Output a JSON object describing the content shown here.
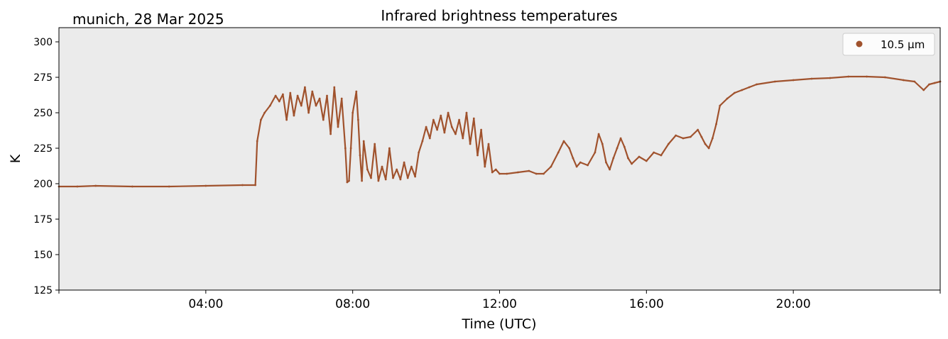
{
  "chart_data": {
    "type": "scatter",
    "title": "Infrared brightness temperatures",
    "subtitle": "munich, 28 Mar 2025",
    "xlabel": "Time (UTC)",
    "ylabel": "K",
    "xlim_hours": [
      0,
      24
    ],
    "ylim": [
      125,
      310
    ],
    "x_tick_hours": [
      4,
      8,
      12,
      16,
      20
    ],
    "x_tick_labels": [
      "04:00",
      "08:00",
      "12:00",
      "16:00",
      "20:00"
    ],
    "y_ticks": [
      125,
      150,
      175,
      200,
      225,
      250,
      275,
      300
    ],
    "y_tick_labels": [
      "125",
      "150",
      "175",
      "200",
      "225",
      "250",
      "275",
      "300"
    ],
    "grid": false,
    "legend_position": "top-right",
    "background": "#ebebeb",
    "series": [
      {
        "name": "10.5 µm",
        "color": "#a0522d",
        "points": [
          [
            0.0,
            198
          ],
          [
            0.5,
            198
          ],
          [
            1.0,
            198.5
          ],
          [
            2.0,
            198
          ],
          [
            3.0,
            198
          ],
          [
            4.0,
            198.5
          ],
          [
            5.0,
            199
          ],
          [
            5.35,
            199
          ],
          [
            5.4,
            230
          ],
          [
            5.5,
            245
          ],
          [
            5.6,
            250
          ],
          [
            5.75,
            255
          ],
          [
            5.9,
            262
          ],
          [
            6.0,
            258
          ],
          [
            6.1,
            263
          ],
          [
            6.2,
            245
          ],
          [
            6.3,
            264
          ],
          [
            6.4,
            248
          ],
          [
            6.5,
            262
          ],
          [
            6.6,
            255
          ],
          [
            6.7,
            268
          ],
          [
            6.8,
            250
          ],
          [
            6.9,
            265
          ],
          [
            7.0,
            255
          ],
          [
            7.1,
            260
          ],
          [
            7.2,
            245
          ],
          [
            7.3,
            262
          ],
          [
            7.4,
            235
          ],
          [
            7.5,
            268
          ],
          [
            7.6,
            240
          ],
          [
            7.7,
            260
          ],
          [
            7.8,
            225
          ],
          [
            7.85,
            201
          ],
          [
            7.9,
            202
          ],
          [
            7.95,
            225
          ],
          [
            8.0,
            250
          ],
          [
            8.1,
            265
          ],
          [
            8.15,
            245
          ],
          [
            8.2,
            220
          ],
          [
            8.25,
            202
          ],
          [
            8.3,
            230
          ],
          [
            8.4,
            210
          ],
          [
            8.5,
            204
          ],
          [
            8.6,
            228
          ],
          [
            8.7,
            202
          ],
          [
            8.8,
            212
          ],
          [
            8.9,
            203
          ],
          [
            9.0,
            225
          ],
          [
            9.1,
            204
          ],
          [
            9.2,
            210
          ],
          [
            9.3,
            203
          ],
          [
            9.4,
            215
          ],
          [
            9.5,
            204
          ],
          [
            9.6,
            212
          ],
          [
            9.7,
            205
          ],
          [
            9.8,
            222
          ],
          [
            9.9,
            230
          ],
          [
            10.0,
            240
          ],
          [
            10.1,
            232
          ],
          [
            10.2,
            245
          ],
          [
            10.3,
            238
          ],
          [
            10.4,
            248
          ],
          [
            10.5,
            236
          ],
          [
            10.6,
            250
          ],
          [
            10.7,
            240
          ],
          [
            10.8,
            235
          ],
          [
            10.9,
            245
          ],
          [
            11.0,
            232
          ],
          [
            11.1,
            250
          ],
          [
            11.2,
            228
          ],
          [
            11.3,
            246
          ],
          [
            11.4,
            220
          ],
          [
            11.5,
            238
          ],
          [
            11.6,
            212
          ],
          [
            11.7,
            228
          ],
          [
            11.8,
            208
          ],
          [
            11.9,
            210
          ],
          [
            12.0,
            207
          ],
          [
            12.2,
            207
          ],
          [
            12.5,
            208
          ],
          [
            12.8,
            209
          ],
          [
            13.0,
            207
          ],
          [
            13.2,
            207
          ],
          [
            13.4,
            212
          ],
          [
            13.6,
            222
          ],
          [
            13.75,
            230
          ],
          [
            13.9,
            225
          ],
          [
            14.0,
            218
          ],
          [
            14.1,
            212
          ],
          [
            14.2,
            215
          ],
          [
            14.4,
            213
          ],
          [
            14.6,
            222
          ],
          [
            14.7,
            235
          ],
          [
            14.8,
            228
          ],
          [
            14.9,
            215
          ],
          [
            15.0,
            210
          ],
          [
            15.1,
            218
          ],
          [
            15.2,
            225
          ],
          [
            15.3,
            232
          ],
          [
            15.4,
            226
          ],
          [
            15.5,
            218
          ],
          [
            15.6,
            214
          ],
          [
            15.8,
            219
          ],
          [
            16.0,
            216
          ],
          [
            16.2,
            222
          ],
          [
            16.4,
            220
          ],
          [
            16.6,
            228
          ],
          [
            16.8,
            234
          ],
          [
            17.0,
            232
          ],
          [
            17.2,
            233
          ],
          [
            17.4,
            238
          ],
          [
            17.5,
            233
          ],
          [
            17.6,
            228
          ],
          [
            17.7,
            225
          ],
          [
            17.8,
            232
          ],
          [
            17.9,
            242
          ],
          [
            18.0,
            255
          ],
          [
            18.2,
            260
          ],
          [
            18.4,
            264
          ],
          [
            18.6,
            266
          ],
          [
            18.8,
            268
          ],
          [
            19.0,
            270
          ],
          [
            19.5,
            272
          ],
          [
            20.0,
            273
          ],
          [
            20.5,
            274
          ],
          [
            21.0,
            274.5
          ],
          [
            21.5,
            275.5
          ],
          [
            22.0,
            275.5
          ],
          [
            22.5,
            275
          ],
          [
            23.0,
            273
          ],
          [
            23.3,
            272
          ],
          [
            23.55,
            266
          ],
          [
            23.7,
            270
          ],
          [
            23.85,
            271
          ],
          [
            24.0,
            272
          ]
        ]
      }
    ]
  }
}
